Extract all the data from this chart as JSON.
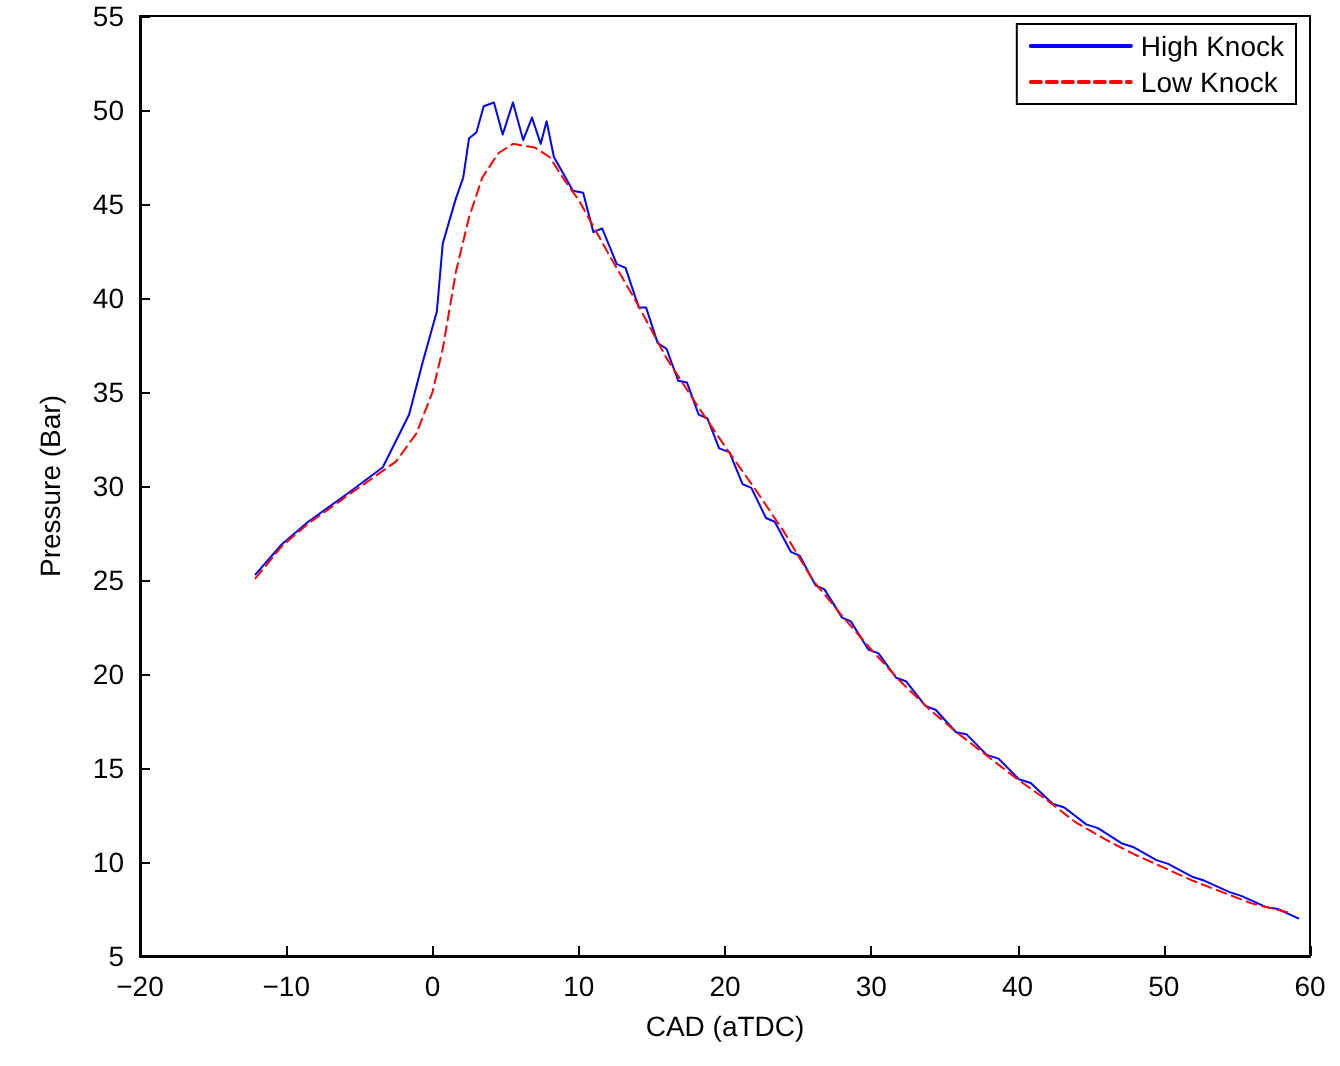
{
  "chart_data": {
    "type": "line",
    "xlabel": "CAD (aTDC)",
    "ylabel": "Pressure (Bar)",
    "xlim": [
      -20,
      60
    ],
    "xticks": [
      -20,
      -10,
      0,
      10,
      20,
      30,
      40,
      50,
      60
    ],
    "ylim": [
      5,
      55
    ],
    "yticks": [
      5,
      10,
      15,
      20,
      25,
      30,
      35,
      40,
      45,
      50,
      55
    ],
    "grid": false,
    "legend": "top right",
    "marker": "none",
    "series": [
      {
        "name": "High Knock",
        "color": "#0000ff",
        "line_style": "solid",
        "x": [
          -12.1,
          -10.3,
          -8.5,
          -5.8,
          -3.4,
          -1.6,
          -0.7,
          0.3,
          0.7,
          1.6,
          2.1,
          2.5,
          3,
          3.5,
          4.2,
          4.8,
          5.5,
          6.2,
          6.8,
          7.4,
          7.8,
          8.3,
          9.1,
          9.6,
          10.3,
          11,
          11.6,
          12.6,
          13.2,
          14.1,
          14.6,
          15.4,
          16,
          16.8,
          17.4,
          18.2,
          18.8,
          19.6,
          20.3,
          21.2,
          21.8,
          22.8,
          23.4,
          24.5,
          25.1,
          26.2,
          26.8,
          28,
          28.6,
          29.8,
          30.5,
          31.7,
          32.4,
          33.7,
          34.4,
          35.8,
          36.5,
          37.9,
          38.7,
          40.1,
          40.9,
          42.4,
          43.2,
          44.7,
          45.5,
          47.1,
          47.9,
          49.5,
          50.3,
          52,
          52.8,
          54.5,
          55.3,
          57,
          57.8,
          59.2
        ],
        "values": [
          25.3,
          26.9,
          28.1,
          29.6,
          31,
          33.8,
          36.5,
          39.3,
          42.9,
          45.3,
          46.4,
          48.5,
          48.8,
          50.2,
          50.4,
          48.7,
          50.4,
          48.4,
          49.6,
          48.2,
          49.4,
          47.5,
          46.4,
          45.7,
          45.6,
          43.5,
          43.7,
          41.8,
          41.6,
          39.5,
          39.5,
          37.6,
          37.3,
          35.6,
          35.5,
          33.8,
          33.6,
          32,
          31.8,
          30.1,
          29.9,
          28.3,
          28.1,
          26.5,
          26.3,
          24.7,
          24.5,
          23,
          22.8,
          21.3,
          21.1,
          19.8,
          19.6,
          18.3,
          18.1,
          16.9,
          16.8,
          15.7,
          15.5,
          14.4,
          14.2,
          13.1,
          12.9,
          12,
          11.8,
          11,
          10.8,
          10.1,
          9.9,
          9.2,
          9,
          8.4,
          8.2,
          7.6,
          7.5,
          7
        ]
      },
      {
        "name": "Low Knock",
        "color": "#ff0000",
        "line_style": "dashed",
        "x": [
          -12.1,
          -10.3,
          -8.5,
          -5.6,
          -2.5,
          -1.1,
          0,
          0.7,
          1.6,
          2.5,
          3.4,
          4.5,
          5.5,
          7,
          8,
          9,
          10,
          12,
          14,
          16,
          18,
          20,
          22,
          24,
          26,
          28,
          30,
          32,
          34,
          36,
          38,
          40,
          42,
          44,
          46,
          48,
          50,
          52,
          54,
          56,
          58.6
        ],
        "values": [
          25.1,
          26.8,
          28,
          29.6,
          31.3,
          32.8,
          35,
          37.3,
          41.4,
          44.3,
          46.4,
          47.7,
          48.2,
          48,
          47.5,
          46.3,
          45.2,
          42.4,
          39.7,
          36.8,
          34.4,
          32.1,
          29.9,
          27.6,
          25,
          23.1,
          21.3,
          19.6,
          18.1,
          16.8,
          15.6,
          14.4,
          13.3,
          12.1,
          11.2,
          10.4,
          9.7,
          9,
          8.4,
          7.8,
          7.3
        ]
      }
    ]
  }
}
